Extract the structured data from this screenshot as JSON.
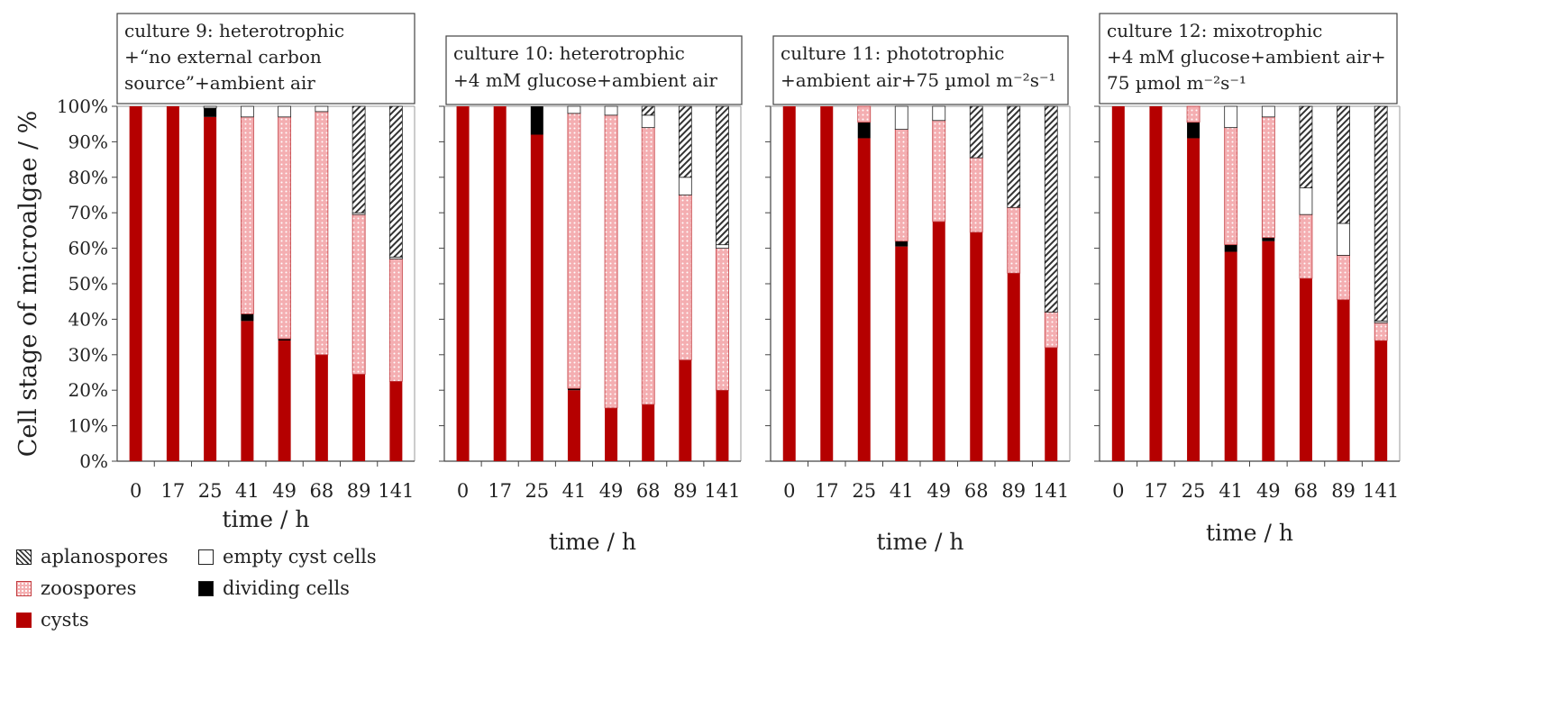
{
  "chart_data": {
    "type": "bar",
    "stacked": true,
    "ylabel": "Cell stage of microalgae / %",
    "yticks": [
      "0%",
      "10%",
      "20%",
      "30%",
      "40%",
      "50%",
      "60%",
      "70%",
      "80%",
      "90%",
      "100%"
    ],
    "ylim": [
      0,
      100
    ],
    "legend": [
      "aplanospores",
      "empty cyst cells",
      "zoospores",
      "dividing cells",
      "cysts"
    ],
    "colors": {
      "cysts": "#b50000",
      "zoospores": "#f4aeb1",
      "dividing": "#000000",
      "empty": "#ffffff",
      "aplanospores": "#333333"
    },
    "panels": [
      {
        "title_lines": [
          "culture 9: heterotrophic",
          "+“no external carbon",
          "source”+ambient air"
        ],
        "xlabel": "time / h",
        "categories": [
          "0",
          "17",
          "25",
          "41",
          "49",
          "68",
          "89",
          "141"
        ],
        "series": [
          {
            "name": "cysts",
            "values": [
              100,
              100,
              97,
              39.5,
              34,
              30,
              24.5,
              22.5
            ]
          },
          {
            "name": "dividing cells",
            "values": [
              0,
              0,
              2.5,
              2,
              0.5,
              0,
              0,
              0
            ]
          },
          {
            "name": "zoospores",
            "values": [
              0,
              0,
              0,
              55.5,
              62.5,
              68.5,
              45,
              34.5
            ]
          },
          {
            "name": "empty cyst cells",
            "values": [
              0,
              0,
              0.5,
              3,
              3,
              1.5,
              0.5,
              0.5
            ]
          },
          {
            "name": "aplanospores",
            "values": [
              0,
              0,
              0,
              0,
              0,
              0,
              30,
              42.5
            ]
          }
        ]
      },
      {
        "title_lines": [
          "culture 10: heterotrophic",
          "+4 mM glucose+ambient air"
        ],
        "xlabel": "time / h",
        "categories": [
          "0",
          "17",
          "25",
          "41",
          "49",
          "68",
          "89",
          "141"
        ],
        "series": [
          {
            "name": "cysts",
            "values": [
              100,
              100,
              92,
              20,
              15,
              16,
              28.5,
              20
            ]
          },
          {
            "name": "dividing cells",
            "values": [
              0,
              0,
              8,
              0.5,
              0,
              0,
              0,
              0
            ]
          },
          {
            "name": "zoospores",
            "values": [
              0,
              0,
              0,
              77.5,
              82.5,
              78,
              46.5,
              40
            ]
          },
          {
            "name": "empty cyst cells",
            "values": [
              0,
              0,
              0,
              2,
              2.5,
              3.5,
              5,
              1
            ]
          },
          {
            "name": "aplanospores",
            "values": [
              0,
              0,
              0,
              0,
              0,
              2.5,
              20,
              39
            ]
          }
        ]
      },
      {
        "title_lines": [
          "culture 11: phototrophic",
          "+ambient air+75 µmol m⁻²s⁻¹"
        ],
        "xlabel": "time / h",
        "categories": [
          "0",
          "17",
          "25",
          "41",
          "49",
          "68",
          "89",
          "141"
        ],
        "series": [
          {
            "name": "cysts",
            "values": [
              100,
              100,
              91,
              60.5,
              67.5,
              64.5,
              53,
              32
            ]
          },
          {
            "name": "dividing cells",
            "values": [
              0,
              0,
              4.5,
              1.5,
              0,
              0,
              0,
              0
            ]
          },
          {
            "name": "zoospores",
            "values": [
              0,
              0,
              4.5,
              31.5,
              28.5,
              21,
              18.5,
              10
            ]
          },
          {
            "name": "empty cyst cells",
            "values": [
              0,
              0,
              0,
              6.5,
              4,
              0,
              0,
              0
            ]
          },
          {
            "name": "aplanospores",
            "values": [
              0,
              0,
              0,
              0,
              0,
              14.5,
              28.5,
              58
            ]
          }
        ]
      },
      {
        "title_lines": [
          "culture 12: mixotrophic",
          "+4 mM glucose+ambient air+",
          "75 µmol m⁻²s⁻¹"
        ],
        "xlabel": "time / h",
        "categories": [
          "0",
          "17",
          "25",
          "41",
          "49",
          "68",
          "89",
          "141"
        ],
        "series": [
          {
            "name": "cysts",
            "values": [
              100,
              100,
              91,
              59,
              62,
              51.5,
              45.5,
              34
            ]
          },
          {
            "name": "dividing cells",
            "values": [
              0,
              0,
              4.5,
              2,
              1,
              0,
              0,
              0
            ]
          },
          {
            "name": "zoospores",
            "values": [
              0,
              0,
              4.5,
              33,
              34,
              18,
              12.5,
              5
            ]
          },
          {
            "name": "empty cyst cells",
            "values": [
              0,
              0,
              0,
              6,
              3,
              7.5,
              9,
              0.5
            ]
          },
          {
            "name": "aplanospores",
            "values": [
              0,
              0,
              0,
              0,
              0,
              23,
              33,
              60.5
            ]
          }
        ]
      }
    ]
  }
}
